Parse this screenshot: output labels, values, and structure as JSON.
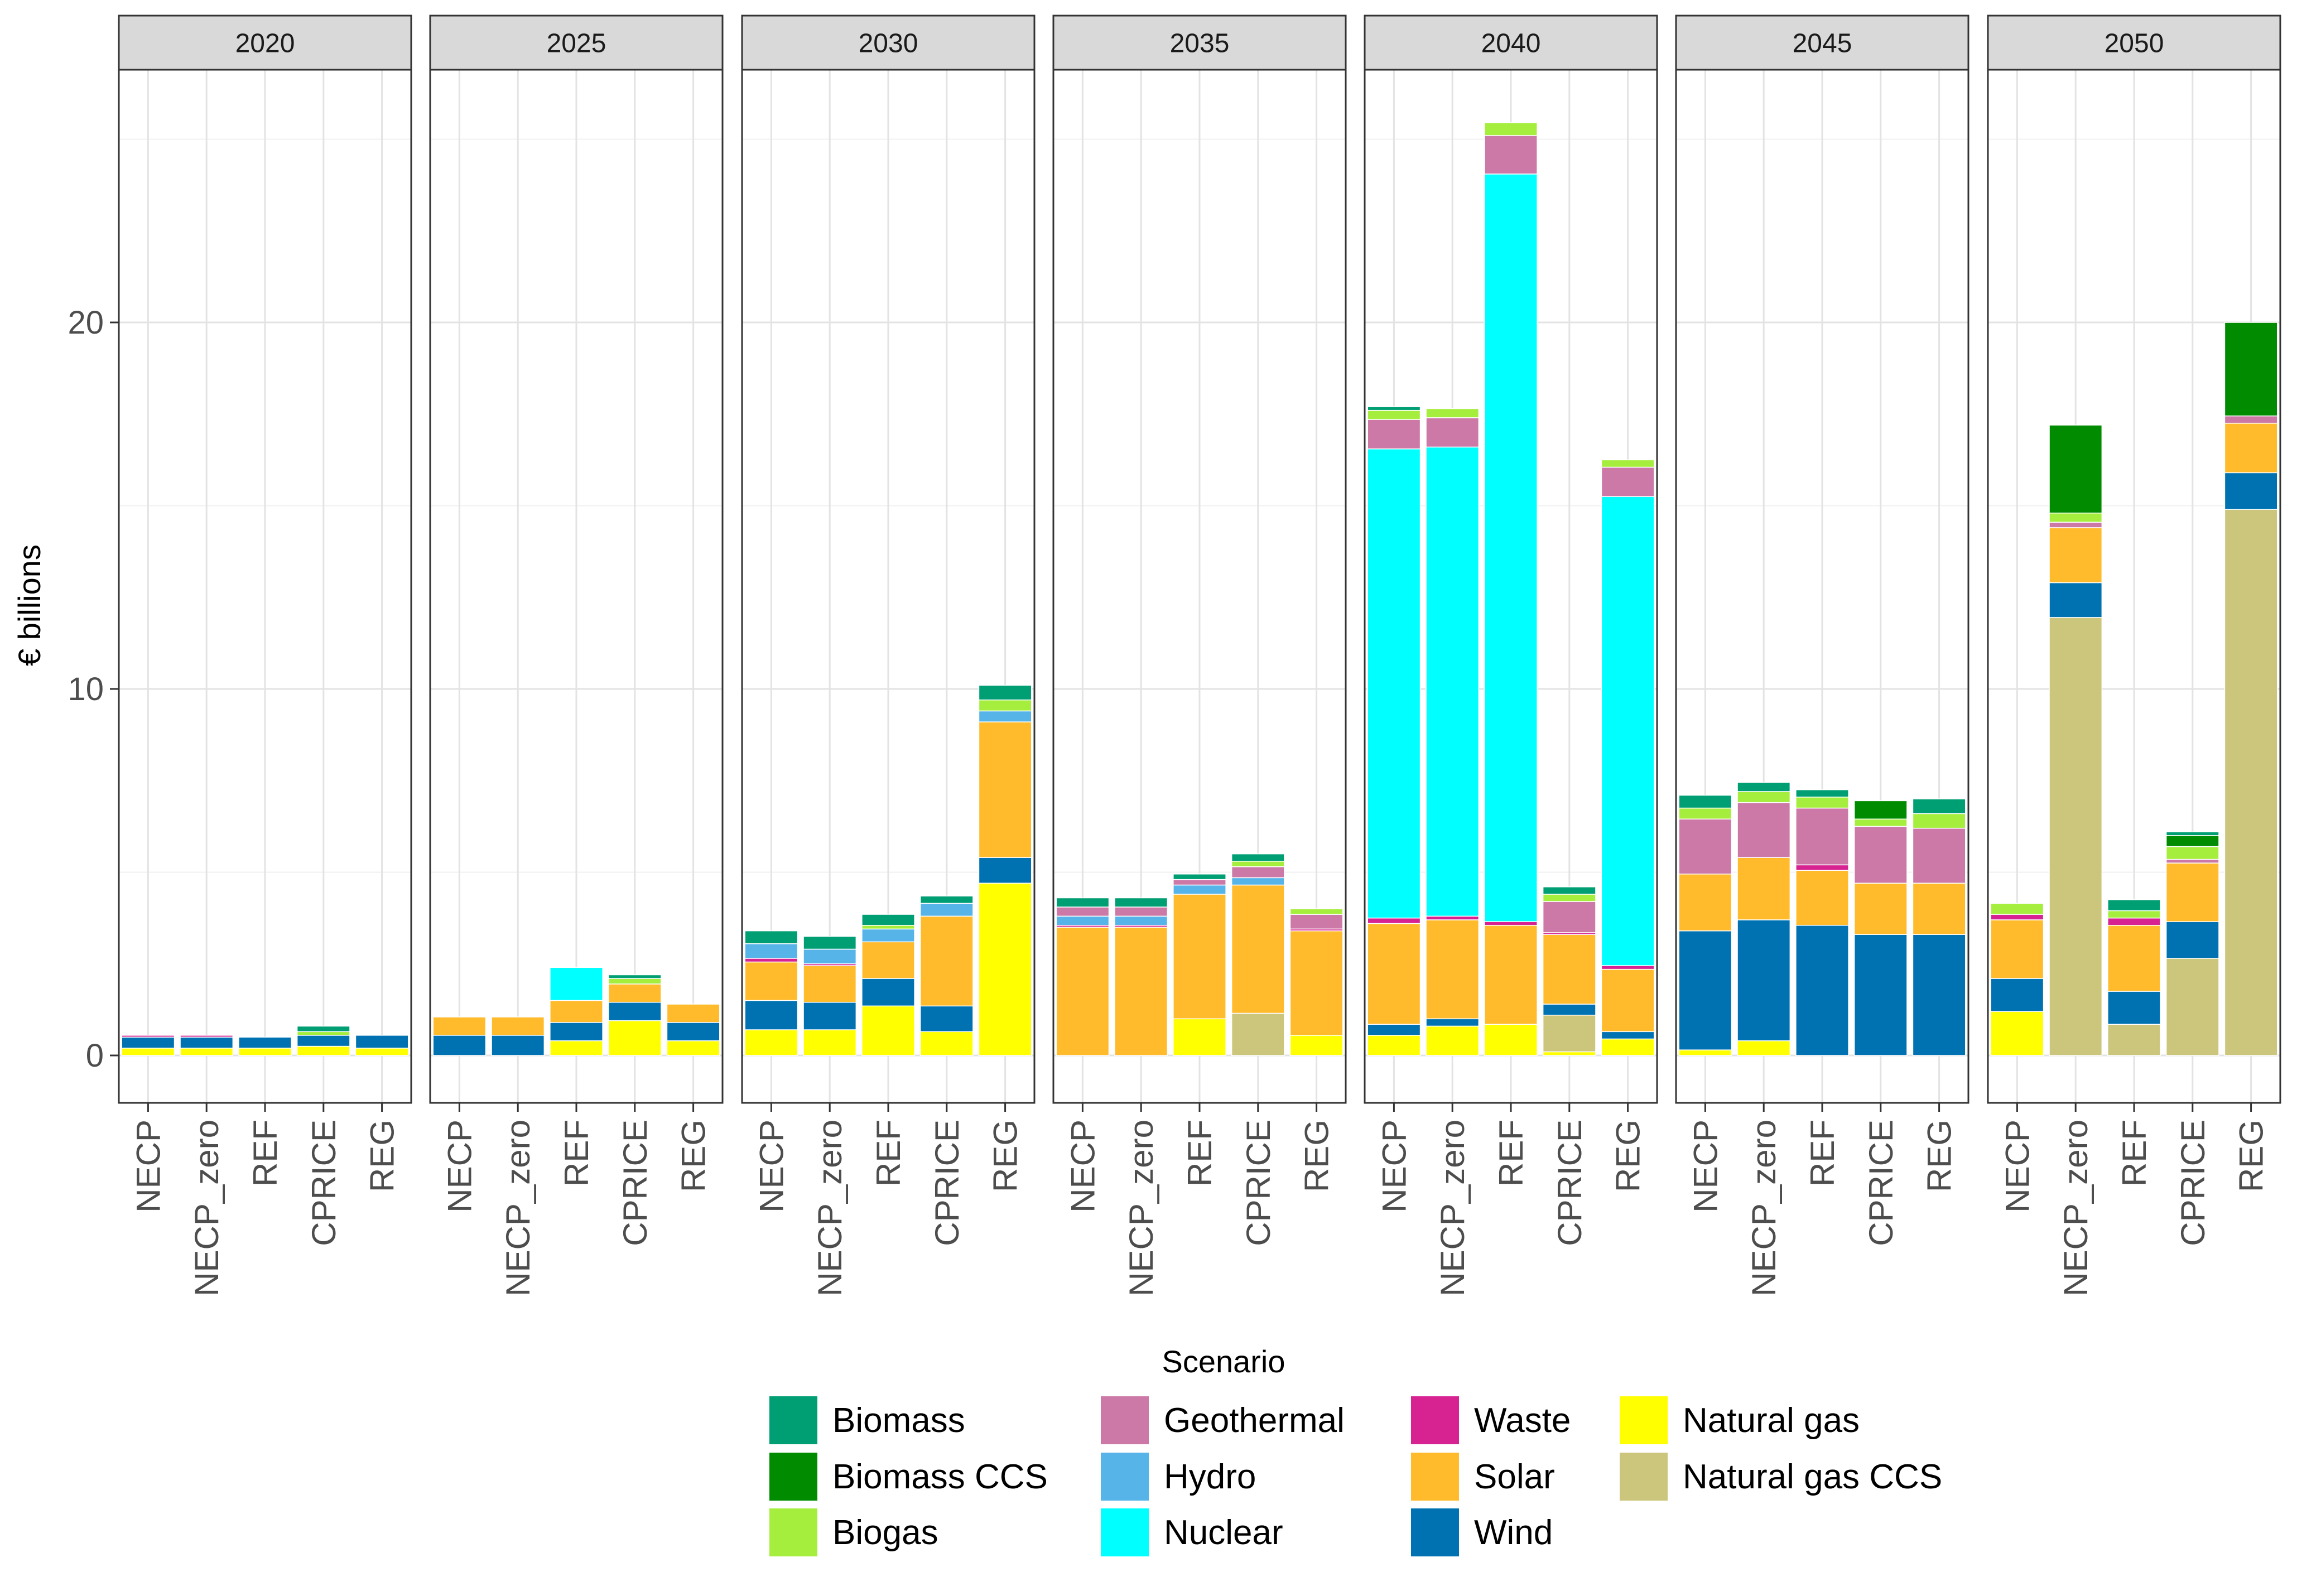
{
  "chart_data": {
    "type": "bar",
    "stacked": true,
    "faceted_by": "year",
    "ylabel": "€ billions",
    "xlabel": "Scenario",
    "ylim": [
      0,
      26
    ],
    "yticks": [
      0,
      10,
      20
    ],
    "grid": true,
    "legend_position": "bottom",
    "categories": [
      "NECP",
      "NECP_zero",
      "REF",
      "CPRICE",
      "REG"
    ],
    "panels": [
      "2020",
      "2025",
      "2030",
      "2035",
      "2040",
      "2045",
      "2050"
    ],
    "series_order": [
      "Natural gas",
      "Natural gas CCS",
      "Wind",
      "Solar",
      "Waste",
      "Nuclear",
      "Hydro",
      "Geothermal",
      "Biogas",
      "Biomass CCS",
      "Biomass"
    ],
    "legend": [
      {
        "name": "Biomass",
        "color": "#009E73"
      },
      {
        "name": "Biomass CCS",
        "color": "#008B00"
      },
      {
        "name": "Biogas",
        "color": "#A6EE3E"
      },
      {
        "name": "Geothermal",
        "color": "#CC79A7"
      },
      {
        "name": "Hydro",
        "color": "#56B4E9"
      },
      {
        "name": "Nuclear",
        "color": "#00FFFF"
      },
      {
        "name": "Waste",
        "color": "#D62391"
      },
      {
        "name": "Solar",
        "color": "#FFBB2C"
      },
      {
        "name": "Wind",
        "color": "#0072B2"
      },
      {
        "name": "Natural gas",
        "color": "#FFFF00"
      },
      {
        "name": "Natural gas CCS",
        "color": "#CCC57C"
      }
    ],
    "data": {
      "2020": {
        "NECP": {
          "Natural gas": 0.2,
          "Wind": 0.3,
          "Waste": 0.05
        },
        "NECP_zero": {
          "Natural gas": 0.2,
          "Wind": 0.3,
          "Waste": 0.05
        },
        "REF": {
          "Natural gas": 0.2,
          "Wind": 0.3
        },
        "CPRICE": {
          "Natural gas": 0.25,
          "Wind": 0.3,
          "Biogas": 0.1,
          "Biomass": 0.15
        },
        "REG": {
          "Natural gas": 0.2,
          "Wind": 0.35
        }
      },
      "2025": {
        "NECP": {
          "Wind": 0.55,
          "Solar": 0.5
        },
        "NECP_zero": {
          "Wind": 0.55,
          "Solar": 0.5
        },
        "REF": {
          "Natural gas": 0.4,
          "Wind": 0.5,
          "Solar": 0.6,
          "Nuclear": 0.9
        },
        "CPRICE": {
          "Natural gas": 0.95,
          "Wind": 0.5,
          "Solar": 0.5,
          "Biogas": 0.15,
          "Biomass": 0.1
        },
        "REG": {
          "Natural gas": 0.4,
          "Wind": 0.5,
          "Solar": 0.5
        }
      },
      "2030": {
        "NECP": {
          "Natural gas": 0.7,
          "Wind": 0.8,
          "Solar": 1.05,
          "Waste": 0.1,
          "Hydro": 0.4,
          "Biomass": 0.35
        },
        "NECP_zero": {
          "Natural gas": 0.7,
          "Wind": 0.75,
          "Solar": 1.0,
          "Waste": 0.05,
          "Hydro": 0.4,
          "Biomass": 0.35
        },
        "REF": {
          "Natural gas": 1.35,
          "Wind": 0.75,
          "Solar": 1.0,
          "Hydro": 0.35,
          "Biogas": 0.1,
          "Biomass": 0.3
        },
        "CPRICE": {
          "Natural gas": 0.65,
          "Wind": 0.7,
          "Solar": 2.45,
          "Hydro": 0.35,
          "Biomass": 0.2
        },
        "REG": {
          "Natural gas": 4.7,
          "Wind": 0.7,
          "Solar": 3.7,
          "Hydro": 0.3,
          "Biogas": 0.3,
          "Biomass": 0.4
        }
      },
      "2035": {
        "NECP": {
          "Solar": 3.5,
          "Waste": 0.05,
          "Hydro": 0.25,
          "Geothermal": 0.25,
          "Biomass": 0.25
        },
        "NECP_zero": {
          "Solar": 3.5,
          "Waste": 0.05,
          "Hydro": 0.25,
          "Geothermal": 0.25,
          "Biomass": 0.25
        },
        "REF": {
          "Natural gas": 1.0,
          "Solar": 3.4,
          "Hydro": 0.25,
          "Geothermal": 0.15,
          "Biomass": 0.15
        },
        "CPRICE": {
          "Natural gas CCS": 1.15,
          "Solar": 3.5,
          "Hydro": 0.2,
          "Geothermal": 0.3,
          "Biogas": 0.15,
          "Biomass": 0.2
        },
        "REG": {
          "Natural gas": 0.55,
          "Solar": 2.85,
          "Waste": 0.05,
          "Geothermal": 0.4,
          "Biogas": 0.15
        }
      },
      "2040": {
        "NECP": {
          "Natural gas": 0.55,
          "Wind": 0.3,
          "Solar": 2.75,
          "Waste": 0.15,
          "Nuclear": 12.8,
          "Geothermal": 0.8,
          "Biogas": 0.25,
          "Biomass": 0.1
        },
        "NECP_zero": {
          "Natural gas": 0.8,
          "Wind": 0.2,
          "Solar": 2.7,
          "Waste": 0.1,
          "Nuclear": 12.8,
          "Geothermal": 0.8,
          "Biogas": 0.25
        },
        "REF": {
          "Natural gas": 0.85,
          "Solar": 2.7,
          "Waste": 0.1,
          "Nuclear": 20.4,
          "Geothermal": 1.05,
          "Biogas": 0.35
        },
        "CPRICE": {
          "Natural gas": 0.1,
          "Natural gas CCS": 1.0,
          "Wind": 0.3,
          "Solar": 1.9,
          "Waste": 0.05,
          "Geothermal": 0.85,
          "Biogas": 0.2,
          "Biomass": 0.2
        },
        "REG": {
          "Natural gas": 0.45,
          "Wind": 0.2,
          "Solar": 1.7,
          "Waste": 0.1,
          "Nuclear": 12.8,
          "Geothermal": 0.8,
          "Biogas": 0.2
        }
      },
      "2045": {
        "NECP": {
          "Natural gas": 0.15,
          "Wind": 3.25,
          "Solar": 1.55,
          "Geothermal": 1.5,
          "Biogas": 0.3,
          "Biomass": 0.35
        },
        "NECP_zero": {
          "Natural gas": 0.4,
          "Wind": 3.3,
          "Solar": 1.7,
          "Geothermal": 1.5,
          "Biogas": 0.3,
          "Biomass": 0.25
        },
        "REF": {
          "Wind": 3.55,
          "Solar": 1.5,
          "Waste": 0.15,
          "Geothermal": 1.55,
          "Biogas": 0.3,
          "Biomass": 0.2
        },
        "CPRICE": {
          "Wind": 3.3,
          "Solar": 1.4,
          "Geothermal": 1.55,
          "Biogas": 0.2,
          "Biomass CCS": 0.5
        },
        "REG": {
          "Wind": 3.3,
          "Solar": 1.4,
          "Geothermal": 1.5,
          "Biogas": 0.4,
          "Biomass": 0.4
        }
      },
      "2050": {
        "NECP": {
          "Natural gas": 1.2,
          "Wind": 0.9,
          "Solar": 1.6,
          "Waste": 0.15,
          "Biogas": 0.3
        },
        "NECP_zero": {
          "Natural gas CCS": 11.95,
          "Wind": 0.95,
          "Solar": 1.5,
          "Geothermal": 0.15,
          "Biogas": 0.25,
          "Biomass CCS": 2.4
        },
        "REF": {
          "Natural gas CCS": 0.85,
          "Wind": 0.9,
          "Solar": 1.8,
          "Waste": 0.2,
          "Biogas": 0.2,
          "Biomass": 0.3
        },
        "CPRICE": {
          "Natural gas CCS": 2.65,
          "Wind": 1.0,
          "Solar": 1.6,
          "Geothermal": 0.1,
          "Biogas": 0.35,
          "Biomass CCS": 0.3,
          "Biomass": 0.1
        },
        "REG": {
          "Natural gas CCS": 14.9,
          "Wind": 1.0,
          "Solar": 1.35,
          "Geothermal": 0.2,
          "Biomass CCS": 2.55
        }
      }
    }
  }
}
